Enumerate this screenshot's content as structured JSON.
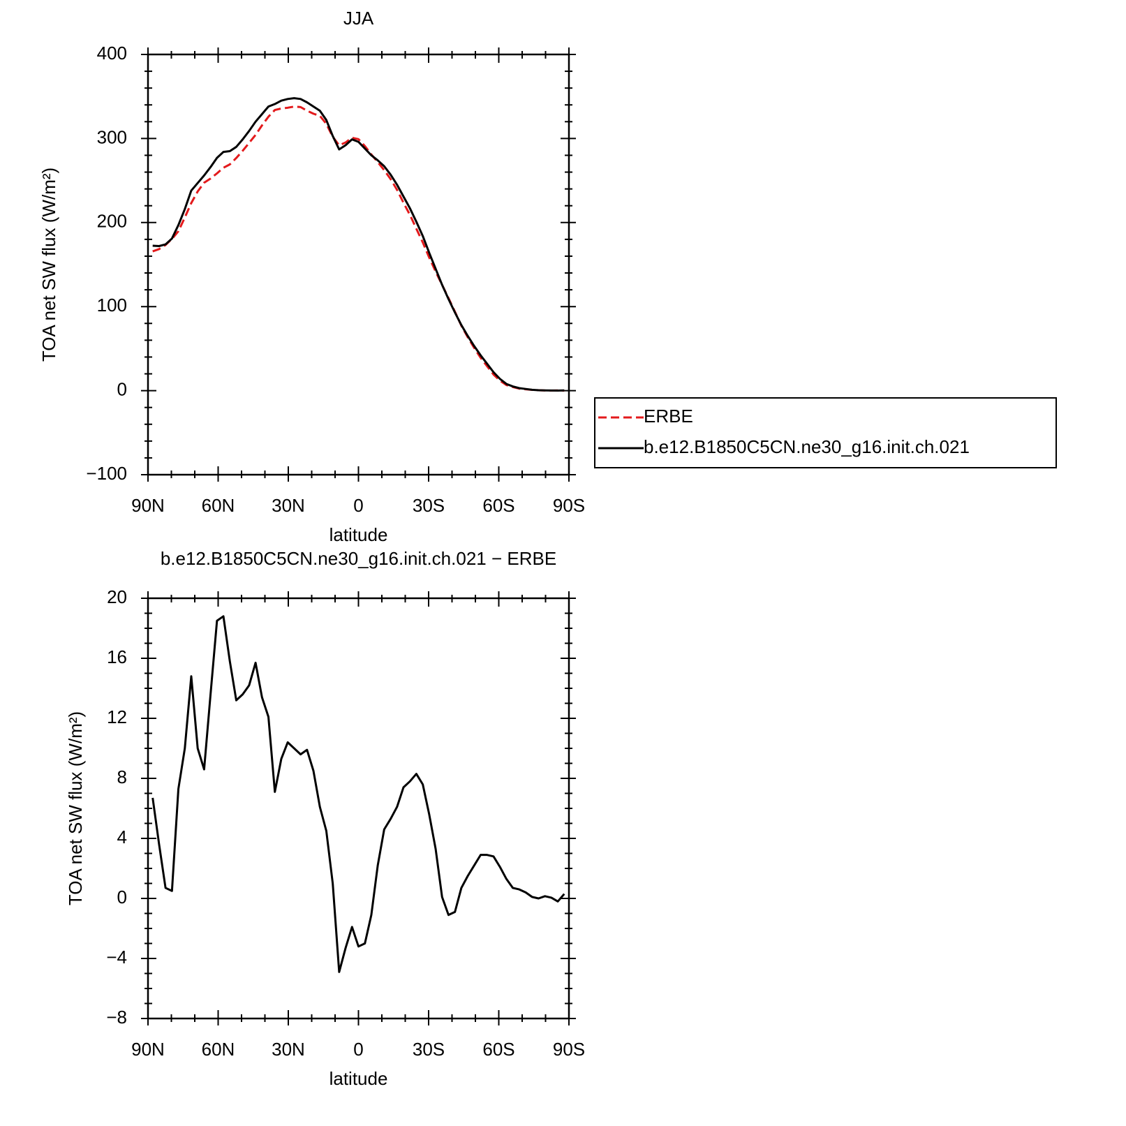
{
  "chart_data": [
    {
      "type": "line",
      "title": "JJA",
      "xlabel": "latitude",
      "ylabel": "TOA net SW flux (W/m²)",
      "x": [
        88,
        85.25,
        82.5,
        79.75,
        77,
        74.25,
        71.5,
        68.75,
        66,
        63.25,
        60.5,
        57.75,
        55,
        52.25,
        49.5,
        46.75,
        44,
        41.25,
        38.5,
        35.75,
        33,
        30.25,
        27.5,
        24.75,
        22,
        19.25,
        16.5,
        13.75,
        11,
        8.25,
        5.5,
        2.75,
        0,
        -2.75,
        -5.5,
        -8.25,
        -11,
        -13.75,
        -16.5,
        -19.25,
        -22,
        -24.75,
        -27.5,
        -30.25,
        -33,
        -35.75,
        -38.5,
        -41.25,
        -44,
        -46.75,
        -49.5,
        -52.25,
        -55,
        -57.75,
        -60.5,
        -63.25,
        -66,
        -68.75,
        -71.5,
        -74.25,
        -77,
        -79.75,
        -82.5,
        -85.25,
        -88
      ],
      "series": [
        {
          "name": "ERBE",
          "color": "#e31a1c",
          "dashed": true,
          "values": [
            165.7,
            168.4,
            173.3,
            180.5,
            189.7,
            206,
            223.2,
            237,
            247.4,
            252.4,
            258.5,
            265.2,
            269.2,
            276.8,
            285.4,
            294.8,
            304.3,
            315.6,
            325.9,
            333.9,
            335.7,
            336.6,
            338,
            337.4,
            333.1,
            329.5,
            326.9,
            317.5,
            302,
            291.9,
            295.3,
            300.9,
            299.2,
            291,
            281.1,
            271.8,
            262.4,
            251.7,
            238.9,
            223.6,
            209.2,
            192.7,
            176.4,
            158.4,
            141.7,
            125.9,
            110.1,
            93.9,
            77.3,
            63.5,
            50.8,
            39.1,
            29.1,
            19.2,
            11.9,
            6.7,
            4.3,
            2.4,
            1.6,
            0.9,
            0.5,
            0.15,
            0.1,
            0.3,
            0
          ]
        },
        {
          "name": "b.e12.B1850C5CN.ne30_g16.init.ch.021",
          "color": "#000000",
          "dashed": false,
          "values": [
            172.4,
            172,
            174,
            181,
            197,
            216,
            238,
            247,
            256,
            266,
            277,
            284,
            285,
            290,
            299,
            309,
            320,
            329,
            338,
            341,
            345,
            347,
            348,
            347,
            343,
            338,
            333,
            322,
            303,
            287,
            292,
            299,
            296,
            288,
            280,
            274,
            267,
            257,
            245,
            231,
            217,
            201,
            184,
            164,
            145,
            126,
            109,
            93,
            78,
            65,
            53,
            42,
            32,
            22,
            14,
            8,
            5,
            3,
            2,
            1,
            0.5,
            0.3,
            0.15,
            0.1,
            0.3
          ]
        }
      ],
      "xlim": [
        90,
        -90
      ],
      "xticks": [
        {
          "value": 90,
          "label": "90N"
        },
        {
          "value": 60,
          "label": "60N"
        },
        {
          "value": 30,
          "label": "30N"
        },
        0,
        {
          "value": -30,
          "label": "30S"
        },
        {
          "value": -60,
          "label": "60S"
        },
        {
          "value": -90,
          "label": "90S"
        }
      ],
      "xminorticks": [
        80,
        70,
        50,
        40,
        20,
        10,
        -10,
        -20,
        -40,
        -50,
        -70,
        -80
      ],
      "ylim": [
        -100,
        400
      ],
      "yticks": [
        {
          "value": -100,
          "label": "−100"
        },
        0,
        100,
        200,
        300,
        400
      ],
      "yminorticks": [
        -80,
        -60,
        -40,
        -20,
        20,
        40,
        60,
        80,
        120,
        140,
        160,
        180,
        220,
        240,
        260,
        280,
        320,
        340,
        360,
        380
      ],
      "legend": "right"
    },
    {
      "type": "line",
      "title": "b.e12.B1850C5CN.ne30_g16.init.ch.021 − ERBE",
      "xlabel": "latitude",
      "ylabel": "TOA net SW flux (W/m²)",
      "x": [
        88,
        85.25,
        82.5,
        79.75,
        77,
        74.25,
        71.5,
        68.75,
        66,
        63.25,
        60.5,
        57.75,
        55,
        52.25,
        49.5,
        46.75,
        44,
        41.25,
        38.5,
        35.75,
        33,
        30.25,
        27.5,
        24.75,
        22,
        19.25,
        16.5,
        13.75,
        11,
        8.25,
        5.5,
        2.75,
        0,
        -2.75,
        -5.5,
        -8.25,
        -11,
        -13.75,
        -16.5,
        -19.25,
        -22,
        -24.75,
        -27.5,
        -30.25,
        -33,
        -35.75,
        -38.5,
        -41.25,
        -44,
        -46.75,
        -49.5,
        -52.25,
        -55,
        -57.75,
        -60.5,
        -63.25,
        -66,
        -68.75,
        -71.5,
        -74.25,
        -77,
        -79.75,
        -82.5,
        -85.25,
        -88
      ],
      "values": [
        6.7,
        3.6,
        0.7,
        0.5,
        7.3,
        10,
        14.8,
        10,
        8.6,
        13.6,
        18.5,
        18.8,
        15.8,
        13.2,
        13.6,
        14.2,
        15.7,
        13.4,
        12.1,
        7.1,
        9.3,
        10.4,
        10,
        9.6,
        9.9,
        8.5,
        6.1,
        4.5,
        1,
        -4.9,
        -3.3,
        -1.9,
        -3.2,
        -3,
        -1.1,
        2.2,
        4.6,
        5.3,
        6.1,
        7.4,
        7.8,
        8.3,
        7.6,
        5.6,
        3.3,
        0.1,
        -1.1,
        -0.9,
        0.7,
        1.5,
        2.2,
        2.9,
        2.9,
        2.8,
        2.1,
        1.3,
        0.7,
        0.6,
        0.4,
        0.1,
        0,
        0.15,
        0.05,
        -0.2,
        0.3
      ],
      "color": "#000000",
      "xlim": [
        90,
        -90
      ],
      "xticks": [
        {
          "value": 90,
          "label": "90N"
        },
        {
          "value": 60,
          "label": "60N"
        },
        {
          "value": 30,
          "label": "30N"
        },
        0,
        {
          "value": -30,
          "label": "30S"
        },
        {
          "value": -60,
          "label": "60S"
        },
        {
          "value": -90,
          "label": "90S"
        }
      ],
      "xminorticks": [
        80,
        70,
        50,
        40,
        20,
        10,
        -10,
        -20,
        -40,
        -50,
        -70,
        -80
      ],
      "ylim": [
        -8,
        20
      ],
      "yticks": [
        {
          "value": -8,
          "label": "−8"
        },
        {
          "value": -4,
          "label": "−4"
        },
        0,
        4,
        8,
        12,
        16,
        20
      ],
      "yminorticks": [
        -7,
        -6,
        -5,
        -3,
        -2,
        -1,
        1,
        2,
        3,
        5,
        6,
        7,
        9,
        10,
        11,
        13,
        14,
        15,
        17,
        18,
        19
      ]
    }
  ]
}
